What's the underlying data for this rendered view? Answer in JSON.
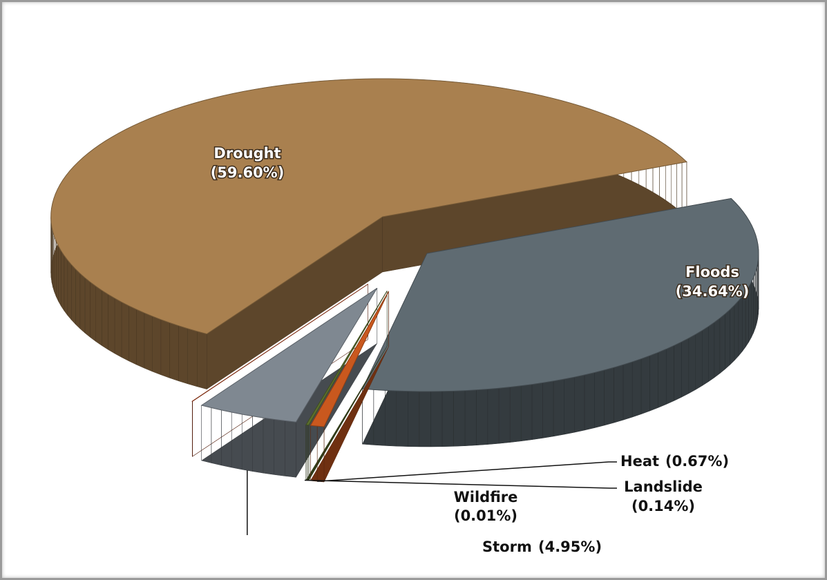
{
  "chart_data": {
    "type": "pie",
    "categories": [
      "Drought",
      "Floods",
      "Heat",
      "Landslide",
      "Storm",
      "Wildfire"
    ],
    "values": [
      59.6,
      34.64,
      0.67,
      0.14,
      4.95,
      0.01
    ],
    "value_labels": [
      "(59.60%)",
      "(34.64%)",
      "(0.67%)",
      "(0.14%)",
      "(4.95%)",
      "(0.01%)"
    ],
    "colors": [
      "#a9804f",
      "#5f6b72",
      "#c9581e",
      "#5a6e2e",
      "#7f8891",
      "#b23a12"
    ]
  }
}
